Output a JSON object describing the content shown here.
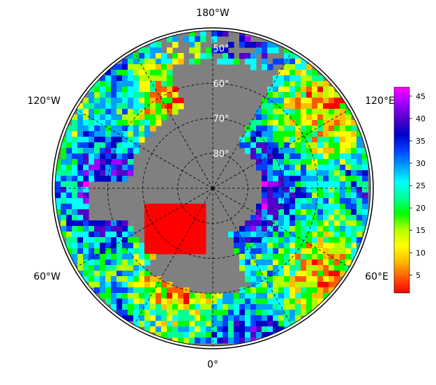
{
  "map": {
    "projection": "north-polar-stereographic",
    "ocean_color": "#808080",
    "frame_color": "#000000",
    "longitude_labels": [
      {
        "text": "180°W",
        "lon": 180
      },
      {
        "text": "120°W",
        "lon": -120
      },
      {
        "text": "60°W",
        "lon": -60
      },
      {
        "text": "0°",
        "lon": 0
      },
      {
        "text": "60°E",
        "lon": 60
      },
      {
        "text": "120°E",
        "lon": 120
      }
    ],
    "latitude_labels": [
      {
        "text": "50°",
        "lat": 50
      },
      {
        "text": "60°",
        "lat": 60
      },
      {
        "text": "70°",
        "lat": 70
      },
      {
        "text": "80°",
        "lat": 80
      }
    ]
  },
  "colorbar": {
    "min": 1,
    "max": 47,
    "ticks": [
      5,
      10,
      15,
      20,
      25,
      30,
      35,
      40,
      45
    ],
    "colors": [
      "#ff0000",
      "#ff5a00",
      "#ffbe00",
      "#ffff00",
      "#b4ff00",
      "#00ff00",
      "#00ff96",
      "#00ffff",
      "#00a0ff",
      "#0040ff",
      "#0000c8",
      "#5000c8",
      "#a000ff",
      "#ff00ff"
    ]
  }
}
